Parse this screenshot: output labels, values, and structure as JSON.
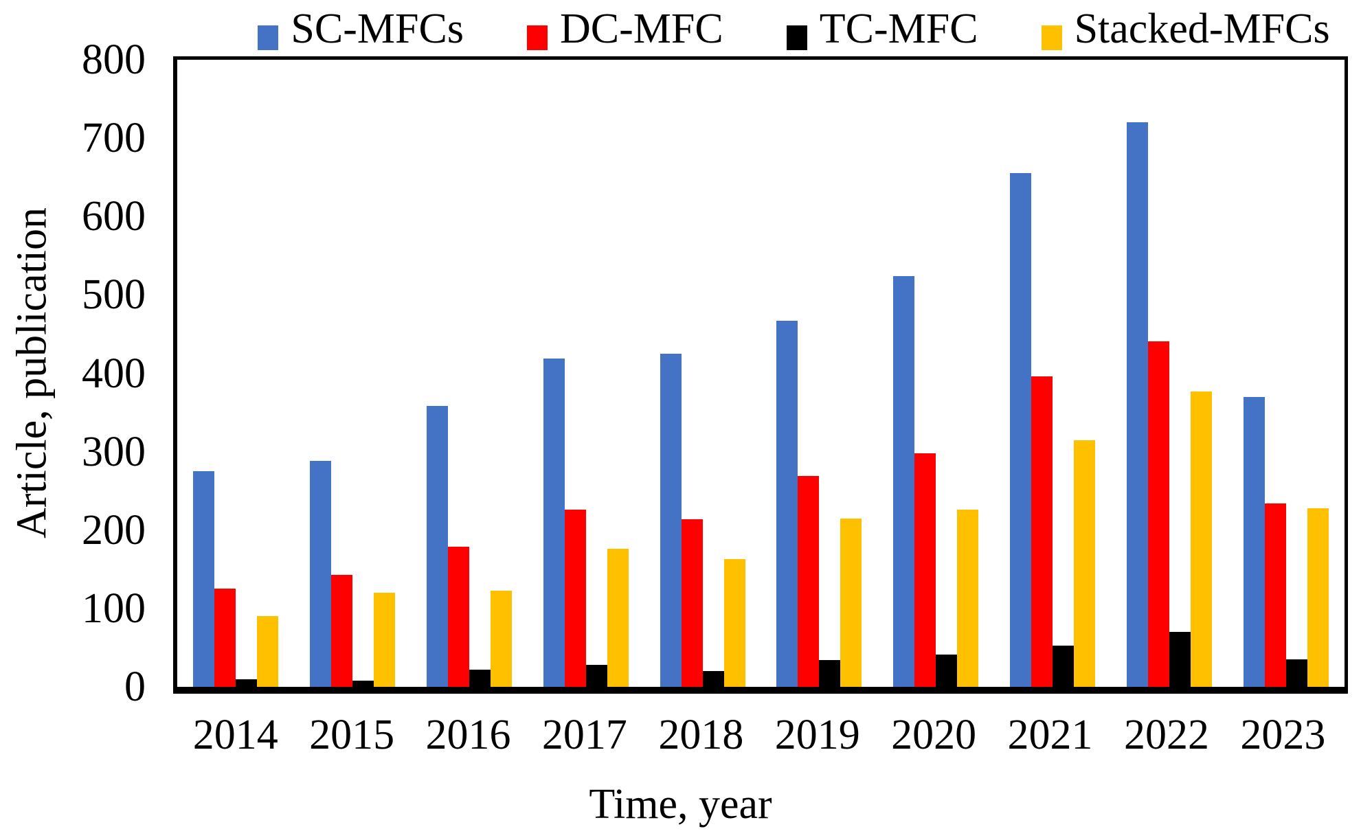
{
  "chart_data": {
    "type": "bar",
    "title": "",
    "xlabel": "Time, year",
    "ylabel": "Article, publication",
    "categories": [
      "2014",
      "2015",
      "2016",
      "2017",
      "2018",
      "2019",
      "2020",
      "2021",
      "2022",
      "2023"
    ],
    "series": [
      {
        "name": "SC-MFCs",
        "color": "#4472C4",
        "values": [
          275,
          288,
          358,
          419,
          425,
          467,
          524,
          655,
          720,
          370
        ]
      },
      {
        "name": "DC-MFC",
        "color": "#FF0000",
        "values": [
          125,
          143,
          179,
          226,
          214,
          269,
          298,
          396,
          441,
          234
        ]
      },
      {
        "name": "TC-MFC",
        "color": "#000000",
        "values": [
          10,
          8,
          22,
          28,
          20,
          34,
          41,
          53,
          70,
          35
        ]
      },
      {
        "name": "Stacked-MFCs",
        "color": "#FFC000",
        "values": [
          90,
          120,
          123,
          176,
          163,
          215,
          226,
          315,
          377,
          228
        ]
      }
    ],
    "ylim": [
      0,
      800
    ],
    "y_ticks": [
      0,
      100,
      200,
      300,
      400,
      500,
      600,
      700,
      800
    ],
    "grid": false,
    "legend_position": "top",
    "plot_border": "box",
    "axis_color": "#000000",
    "background_color": "#FFFFFF"
  }
}
